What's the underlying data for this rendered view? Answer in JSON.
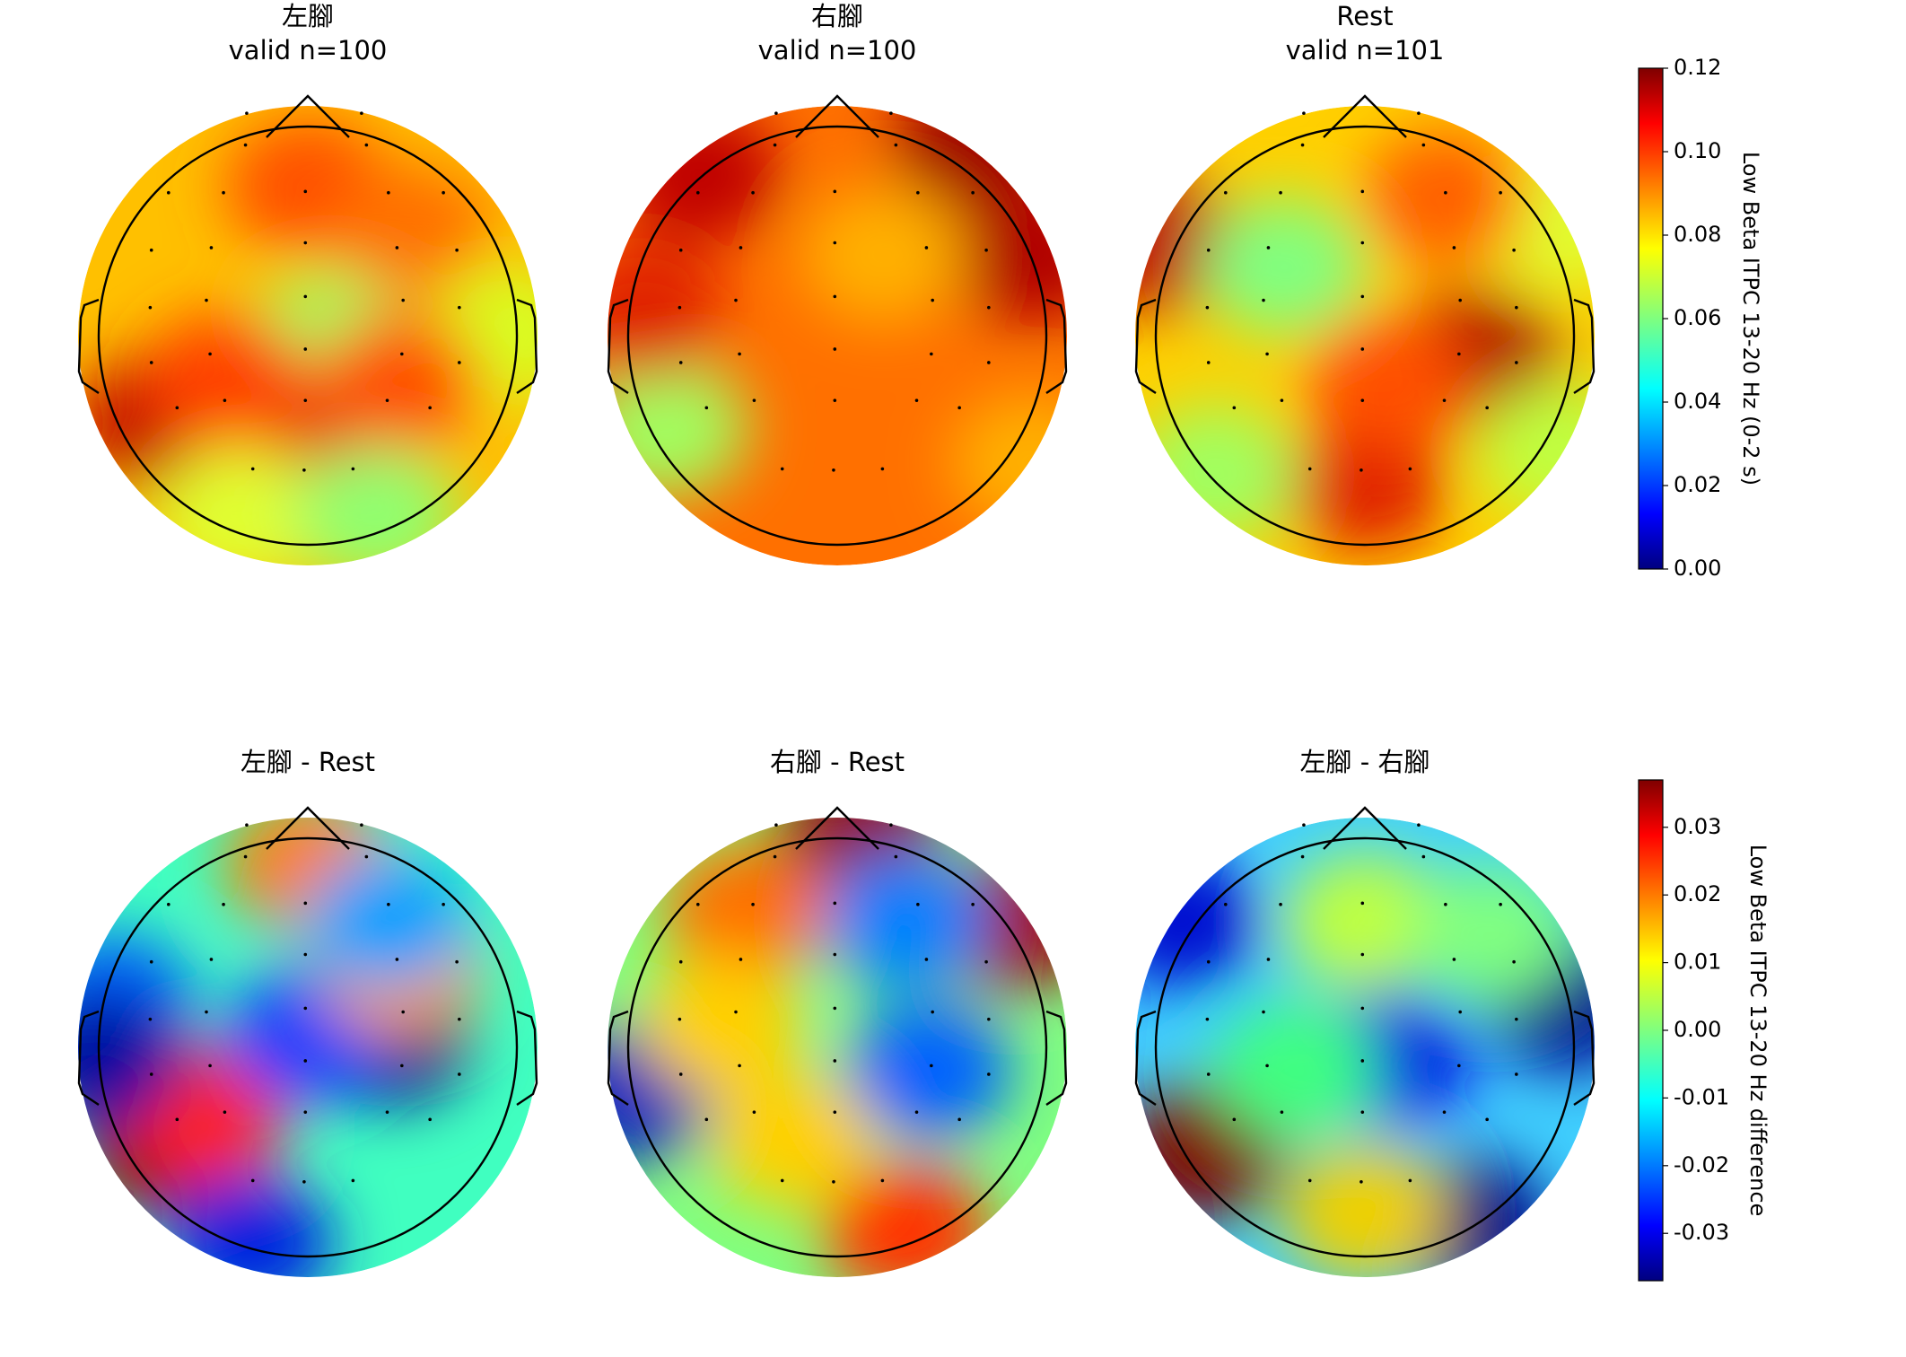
{
  "chart_data": [
    {
      "type": "topomap",
      "panels": [
        {
          "title": "左腳",
          "subtitle": "valid n=100"
        },
        {
          "title": "右腳",
          "subtitle": "valid n=100"
        },
        {
          "title": "Rest",
          "subtitle": "valid n=101"
        }
      ],
      "colorbar": {
        "label": "Low Beta ITPC 13-20 Hz (0-2 s)",
        "colormap": "jet",
        "lim": [
          0,
          0.12
        ],
        "ticks": [
          {
            "value": 0,
            "label": "0.00"
          },
          {
            "value": 0.02,
            "label": "0.02"
          },
          {
            "value": 0.04,
            "label": "0.04"
          },
          {
            "value": 0.06,
            "label": "0.06"
          },
          {
            "value": 0.08,
            "label": "0.08"
          },
          {
            "value": 0.1,
            "label": "0.10"
          },
          {
            "value": 0.12,
            "label": "0.12"
          }
        ]
      }
    },
    {
      "type": "topomap",
      "panels": [
        {
          "title": "左腳 - Rest"
        },
        {
          "title": "右腳 - Rest"
        },
        {
          "title": "左腳 - 右腳"
        }
      ],
      "colorbar": {
        "label": "Low Beta ITPC 13-20 Hz difference",
        "colormap": "jet",
        "lim": [
          -0.037,
          0.037
        ],
        "ticks": [
          {
            "value": -0.03,
            "label": "-0.03"
          },
          {
            "value": -0.02,
            "label": "-0.02"
          },
          {
            "value": -0.01,
            "label": "-0.01"
          },
          {
            "value": 0,
            "label": "0.00"
          },
          {
            "value": 0.01,
            "label": "0.01"
          },
          {
            "value": 0.02,
            "label": "0.02"
          },
          {
            "value": 0.03,
            "label": "0.03"
          }
        ]
      }
    }
  ]
}
